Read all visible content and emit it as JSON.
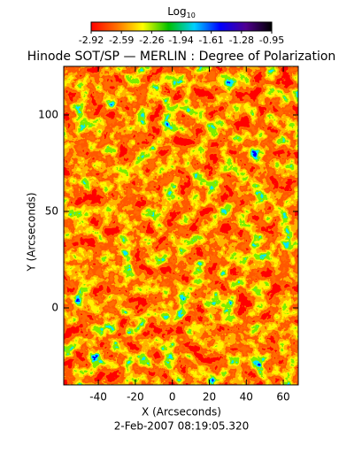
{
  "chart_data": {
    "type": "image",
    "title": "Hinode SOT/SP — MERLIN : Degree of Polarization",
    "colorbar_label": "Log",
    "colorbar_label_sub": "10",
    "colorbar_lim": [
      -2.92,
      -0.95
    ],
    "colorbar_ticks": [
      -2.92,
      -2.59,
      -2.26,
      -1.94,
      -1.61,
      -1.28,
      -0.95
    ],
    "colormap": [
      "#ff0000",
      "#ff7000",
      "#ffff00",
      "#00c000",
      "#00d0ff",
      "#0000ff",
      "#500090",
      "#000000"
    ],
    "x_label": "X (Arcseconds)",
    "y_label": "Y (Arcseconds)",
    "date": "2-Feb-2007 08:19:05.320",
    "xlim": [
      -58.7,
      68.1
    ],
    "xticks": [
      -40,
      -20,
      0,
      20,
      40,
      60
    ],
    "ylim": [
      -39.9,
      125.2
    ],
    "yticks": [
      0,
      50,
      100
    ]
  }
}
